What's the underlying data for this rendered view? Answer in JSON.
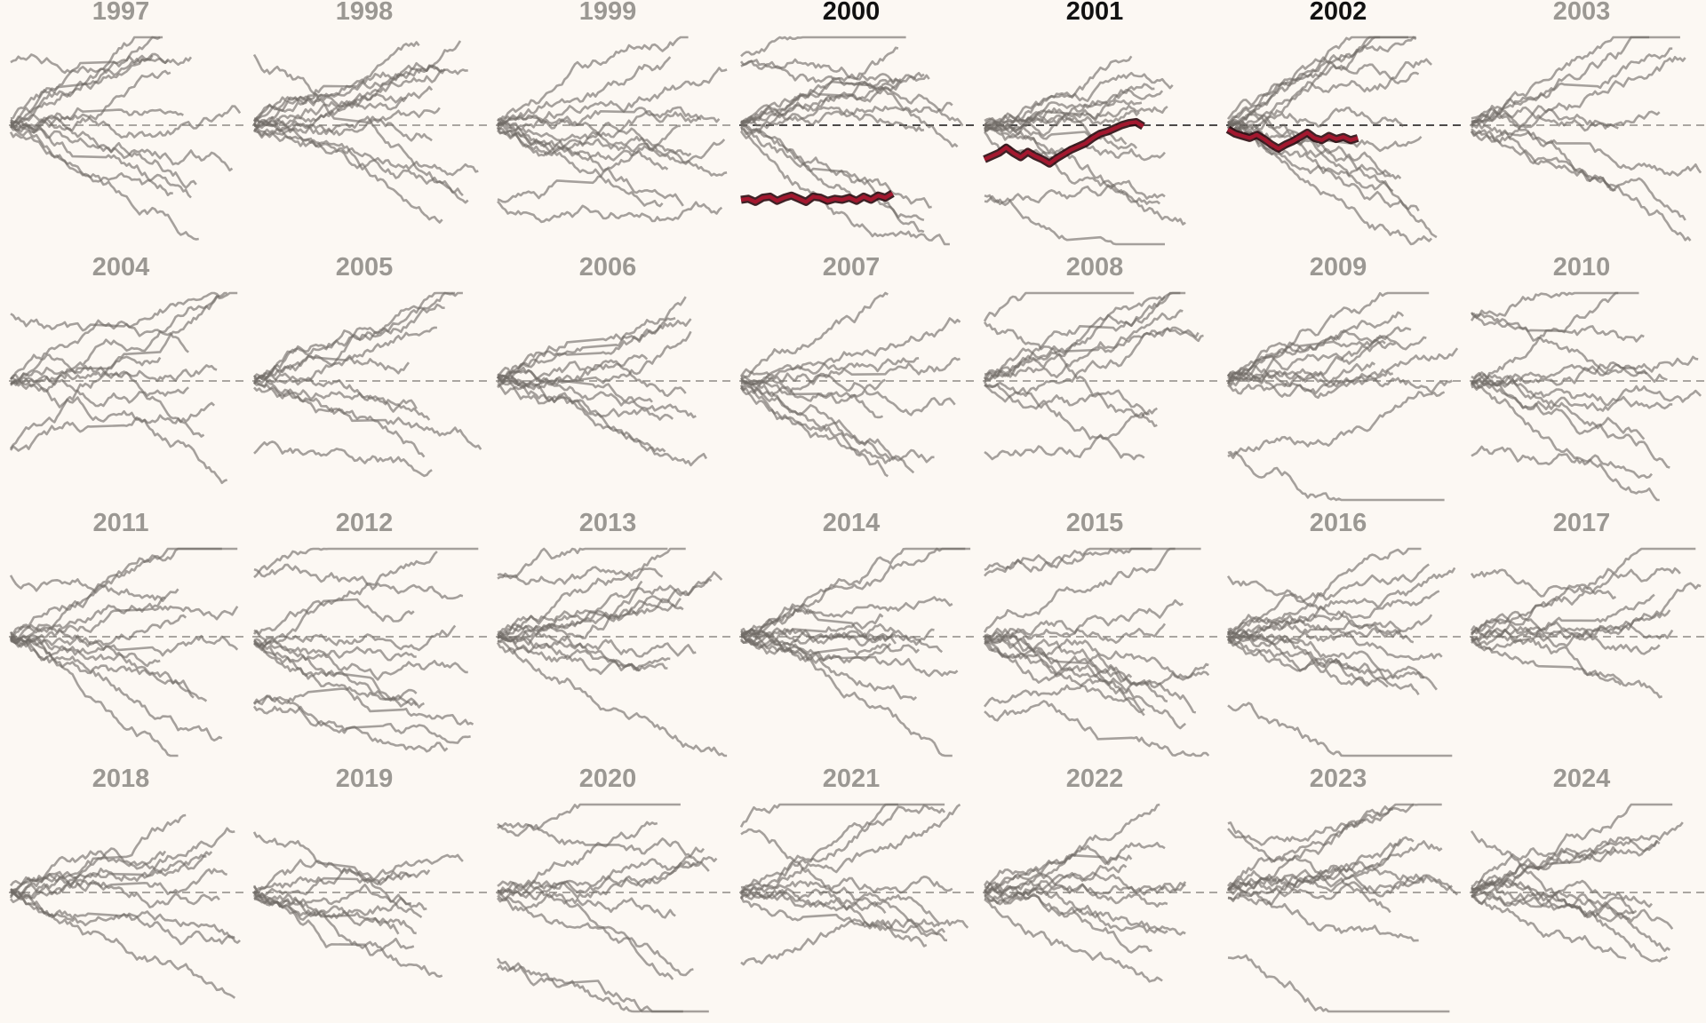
{
  "colors": {
    "background": "#fcf8f3",
    "trace": "#6f6b66",
    "title_default": "#9b9893",
    "title_highlight": "#111111",
    "highlight_line": "#a3182f"
  },
  "chart_data": {
    "type": "line",
    "layout": "small-multiples",
    "grid": false,
    "baseline": 0,
    "panels": [
      {
        "title": "1997",
        "highlighted": false
      },
      {
        "title": "1998",
        "highlighted": false
      },
      {
        "title": "1999",
        "highlighted": false
      },
      {
        "title": "2000",
        "highlighted": true
      },
      {
        "title": "2001",
        "highlighted": true
      },
      {
        "title": "2002",
        "highlighted": true
      },
      {
        "title": "2003",
        "highlighted": false
      },
      {
        "title": "2004",
        "highlighted": false
      },
      {
        "title": "2005",
        "highlighted": false
      },
      {
        "title": "2006",
        "highlighted": false
      },
      {
        "title": "2007",
        "highlighted": false
      },
      {
        "title": "2008",
        "highlighted": false
      },
      {
        "title": "2009",
        "highlighted": false
      },
      {
        "title": "2010",
        "highlighted": false
      },
      {
        "title": "2011",
        "highlighted": false
      },
      {
        "title": "2012",
        "highlighted": false
      },
      {
        "title": "2013",
        "highlighted": false
      },
      {
        "title": "2014",
        "highlighted": false
      },
      {
        "title": "2015",
        "highlighted": false
      },
      {
        "title": "2016",
        "highlighted": false
      },
      {
        "title": "2017",
        "highlighted": false
      },
      {
        "title": "2018",
        "highlighted": false
      },
      {
        "title": "2019",
        "highlighted": false
      },
      {
        "title": "2020",
        "highlighted": false
      },
      {
        "title": "2021",
        "highlighted": false
      },
      {
        "title": "2022",
        "highlighted": false
      },
      {
        "title": "2023",
        "highlighted": false
      },
      {
        "title": "2024",
        "highlighted": false
      }
    ],
    "highlighted_series": [
      {
        "panel": "2000",
        "start": -0.7,
        "points": [
          [
            0,
            0
          ],
          [
            4,
            0.01
          ],
          [
            8,
            -0.02
          ],
          [
            12,
            0.02
          ],
          [
            16,
            0.03
          ],
          [
            20,
            -0.01
          ],
          [
            24,
            0.02
          ],
          [
            28,
            0.04
          ],
          [
            32,
            0.01
          ],
          [
            36,
            -0.02
          ],
          [
            40,
            0.03
          ],
          [
            44,
            0.02
          ],
          [
            48,
            -0.01
          ],
          [
            52,
            0.01
          ],
          [
            56,
            0.0
          ],
          [
            60,
            0.02
          ],
          [
            64,
            -0.01
          ],
          [
            68,
            0.03
          ],
          [
            72,
            0.0
          ],
          [
            76,
            0.04
          ],
          [
            80,
            0.02
          ],
          [
            84,
            0.06
          ]
        ]
      },
      {
        "panel": "2001",
        "start": -0.32,
        "points": [
          [
            0,
            0
          ],
          [
            4,
            0.03
          ],
          [
            8,
            0.06
          ],
          [
            12,
            0.11
          ],
          [
            16,
            0.06
          ],
          [
            20,
            0.02
          ],
          [
            24,
            0.07
          ],
          [
            28,
            0.03
          ],
          [
            32,
            0.0
          ],
          [
            36,
            -0.04
          ],
          [
            40,
            0.01
          ],
          [
            44,
            0.05
          ],
          [
            48,
            0.09
          ],
          [
            52,
            0.12
          ],
          [
            56,
            0.15
          ],
          [
            60,
            0.2
          ],
          [
            64,
            0.24
          ],
          [
            68,
            0.26
          ],
          [
            72,
            0.29
          ],
          [
            76,
            0.32
          ],
          [
            80,
            0.34
          ],
          [
            84,
            0.35
          ],
          [
            88,
            0.31
          ]
        ]
      },
      {
        "panel": "2002",
        "start": -0.04,
        "points": [
          [
            0,
            0
          ],
          [
            4,
            -0.04
          ],
          [
            8,
            -0.06
          ],
          [
            12,
            -0.08
          ],
          [
            16,
            -0.05
          ],
          [
            20,
            -0.09
          ],
          [
            24,
            -0.14
          ],
          [
            28,
            -0.18
          ],
          [
            32,
            -0.14
          ],
          [
            36,
            -0.11
          ],
          [
            40,
            -0.07
          ],
          [
            44,
            -0.03
          ],
          [
            48,
            -0.08
          ],
          [
            52,
            -0.1
          ],
          [
            56,
            -0.06
          ],
          [
            60,
            -0.09
          ],
          [
            64,
            -0.07
          ],
          [
            68,
            -0.1
          ],
          [
            72,
            -0.08
          ]
        ]
      }
    ]
  }
}
